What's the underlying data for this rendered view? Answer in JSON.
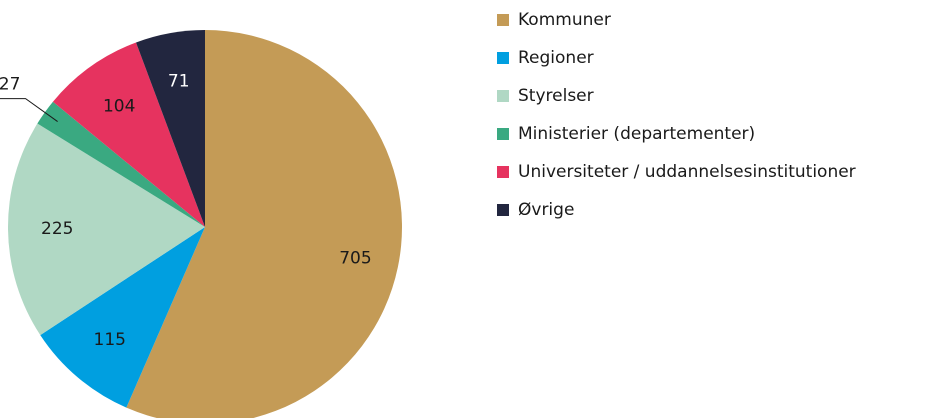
{
  "chart_data": {
    "type": "pie",
    "categories": [
      "Kommuner",
      "Regioner",
      "Styrelser",
      "Ministerier (departementer)",
      "Universiteter / uddannelsesinstitutioner",
      "Øvrige"
    ],
    "values": [
      705,
      115,
      225,
      27,
      104,
      71
    ],
    "colors": [
      "#c49b56",
      "#009fe0",
      "#b0d8c4",
      "#3aa981",
      "#e6335f",
      "#22263f"
    ],
    "legend": "right"
  }
}
